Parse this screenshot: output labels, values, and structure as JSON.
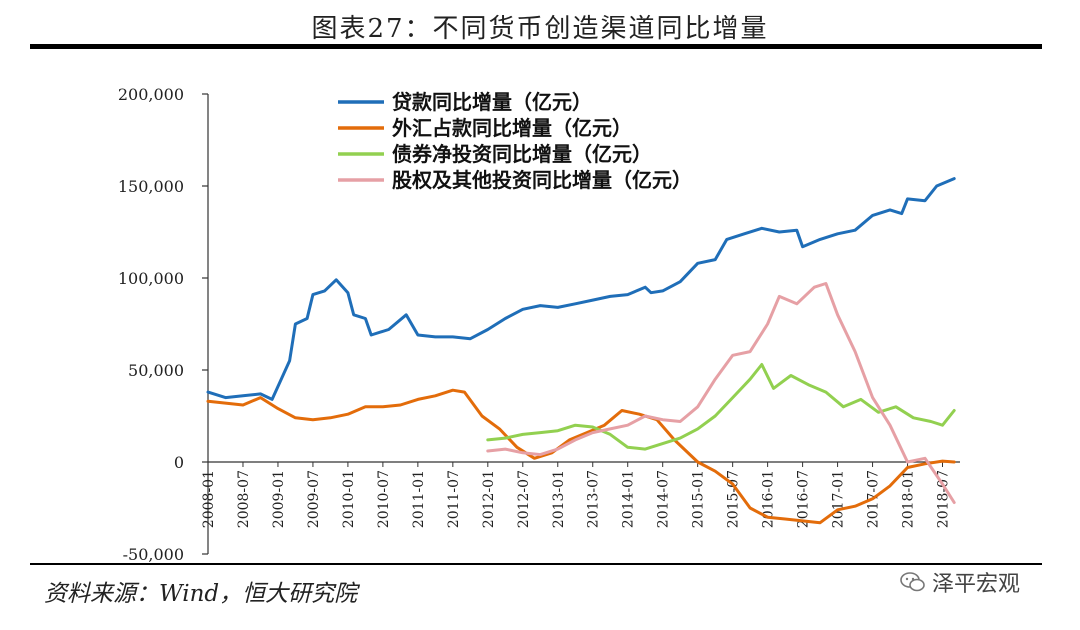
{
  "header": {
    "title": "图表27：不同货币创造渠道同比增量"
  },
  "footer": {
    "source": "资料来源：Wind，恒大研究院",
    "watermark": "泽平宏观"
  },
  "chart_data": {
    "type": "line",
    "title": "图表27：不同货币创造渠道同比增量",
    "xlabel": "",
    "ylabel": "",
    "ylim": [
      -50000,
      200000
    ],
    "yticks": [
      -50000,
      0,
      50000,
      100000,
      150000,
      200000
    ],
    "ytick_labels": [
      "-50,000",
      "0",
      "50,000",
      "100,000",
      "150,000",
      "200,000"
    ],
    "xlim": [
      "2008-01",
      "2018-10"
    ],
    "xtick_labels": [
      "2008-01",
      "2008-07",
      "2009-01",
      "2009-07",
      "2010-01",
      "2010-07",
      "2011-01",
      "2011-07",
      "2012-01",
      "2012-07",
      "2013-01",
      "2013-07",
      "2014-01",
      "2014-07",
      "2015-01",
      "2015-07",
      "2016-01",
      "2016-07",
      "2017-01",
      "2017-07",
      "2018-01",
      "2018-07"
    ],
    "legend_position": "top-left",
    "grid": false,
    "series": [
      {
        "name": "贷款同比增量（亿元）",
        "color": "#1f6eb8",
        "points": [
          [
            "2008-01",
            38000
          ],
          [
            "2008-04",
            35000
          ],
          [
            "2008-07",
            36000
          ],
          [
            "2008-10",
            37000
          ],
          [
            "2008-12",
            34000
          ],
          [
            "2009-03",
            55000
          ],
          [
            "2009-04",
            75000
          ],
          [
            "2009-06",
            78000
          ],
          [
            "2009-07",
            91000
          ],
          [
            "2009-09",
            93000
          ],
          [
            "2009-11",
            99000
          ],
          [
            "2010-01",
            92000
          ],
          [
            "2010-02",
            80000
          ],
          [
            "2010-04",
            78000
          ],
          [
            "2010-05",
            69000
          ],
          [
            "2010-08",
            72000
          ],
          [
            "2010-11",
            80000
          ],
          [
            "2011-01",
            69000
          ],
          [
            "2011-04",
            68000
          ],
          [
            "2011-07",
            68000
          ],
          [
            "2011-10",
            67000
          ],
          [
            "2012-01",
            72000
          ],
          [
            "2012-04",
            78000
          ],
          [
            "2012-07",
            83000
          ],
          [
            "2012-10",
            85000
          ],
          [
            "2013-01",
            84000
          ],
          [
            "2013-04",
            86000
          ],
          [
            "2013-07",
            88000
          ],
          [
            "2013-10",
            90000
          ],
          [
            "2014-01",
            91000
          ],
          [
            "2014-04",
            95000
          ],
          [
            "2014-05",
            92000
          ],
          [
            "2014-07",
            93000
          ],
          [
            "2014-10",
            98000
          ],
          [
            "2015-01",
            108000
          ],
          [
            "2015-04",
            110000
          ],
          [
            "2015-06",
            121000
          ],
          [
            "2015-09",
            124000
          ],
          [
            "2015-12",
            127000
          ],
          [
            "2016-03",
            125000
          ],
          [
            "2016-06",
            126000
          ],
          [
            "2016-07",
            117000
          ],
          [
            "2016-10",
            121000
          ],
          [
            "2017-01",
            124000
          ],
          [
            "2017-04",
            126000
          ],
          [
            "2017-07",
            134000
          ],
          [
            "2017-10",
            137000
          ],
          [
            "2017-12",
            135000
          ],
          [
            "2018-01",
            143000
          ],
          [
            "2018-04",
            142000
          ],
          [
            "2018-06",
            150000
          ],
          [
            "2018-09",
            154000
          ]
        ]
      },
      {
        "name": "外汇占款同比增量（亿元）",
        "color": "#e36c0a",
        "points": [
          [
            "2008-01",
            33000
          ],
          [
            "2008-04",
            32000
          ],
          [
            "2008-07",
            31000
          ],
          [
            "2008-10",
            35000
          ],
          [
            "2009-01",
            29000
          ],
          [
            "2009-04",
            24000
          ],
          [
            "2009-07",
            23000
          ],
          [
            "2009-10",
            24000
          ],
          [
            "2010-01",
            26000
          ],
          [
            "2010-04",
            30000
          ],
          [
            "2010-07",
            30000
          ],
          [
            "2010-10",
            31000
          ],
          [
            "2011-01",
            34000
          ],
          [
            "2011-04",
            36000
          ],
          [
            "2011-07",
            39000
          ],
          [
            "2011-09",
            38000
          ],
          [
            "2011-12",
            25000
          ],
          [
            "2012-03",
            18000
          ],
          [
            "2012-06",
            8000
          ],
          [
            "2012-09",
            2000
          ],
          [
            "2012-12",
            5000
          ],
          [
            "2013-03",
            12000
          ],
          [
            "2013-06",
            16000
          ],
          [
            "2013-09",
            20000
          ],
          [
            "2013-12",
            28000
          ],
          [
            "2014-03",
            26000
          ],
          [
            "2014-06",
            23000
          ],
          [
            "2014-09",
            12000
          ],
          [
            "2015-01",
            0
          ],
          [
            "2015-04",
            -5000
          ],
          [
            "2015-07",
            -12000
          ],
          [
            "2015-10",
            -25000
          ],
          [
            "2016-01",
            -30000
          ],
          [
            "2016-04",
            -31000
          ],
          [
            "2016-07",
            -32000
          ],
          [
            "2016-10",
            -33000
          ],
          [
            "2017-01",
            -26000
          ],
          [
            "2017-04",
            -24000
          ],
          [
            "2017-07",
            -20000
          ],
          [
            "2017-10",
            -13000
          ],
          [
            "2018-01",
            -3000
          ],
          [
            "2018-04",
            -1000
          ],
          [
            "2018-07",
            500
          ],
          [
            "2018-09",
            0
          ]
        ]
      },
      {
        "name": "债券净投资同比增量（亿元）",
        "color": "#92d050",
        "points": [
          [
            "2012-01",
            12000
          ],
          [
            "2012-04",
            13000
          ],
          [
            "2012-07",
            15000
          ],
          [
            "2012-10",
            16000
          ],
          [
            "2013-01",
            17000
          ],
          [
            "2013-04",
            20000
          ],
          [
            "2013-07",
            19000
          ],
          [
            "2013-10",
            15000
          ],
          [
            "2014-01",
            8000
          ],
          [
            "2014-04",
            7000
          ],
          [
            "2014-07",
            10000
          ],
          [
            "2014-10",
            13000
          ],
          [
            "2015-01",
            18000
          ],
          [
            "2015-04",
            25000
          ],
          [
            "2015-07",
            35000
          ],
          [
            "2015-10",
            45000
          ],
          [
            "2015-12",
            53000
          ],
          [
            "2016-02",
            40000
          ],
          [
            "2016-05",
            47000
          ],
          [
            "2016-08",
            42000
          ],
          [
            "2016-11",
            38000
          ],
          [
            "2017-02",
            30000
          ],
          [
            "2017-05",
            34000
          ],
          [
            "2017-08",
            27000
          ],
          [
            "2017-11",
            30000
          ],
          [
            "2018-02",
            24000
          ],
          [
            "2018-05",
            22000
          ],
          [
            "2018-07",
            20000
          ],
          [
            "2018-09",
            28000
          ]
        ]
      },
      {
        "name": "股权及其他投资同比增量（亿元）",
        "color": "#e6a0a5",
        "points": [
          [
            "2012-01",
            6000
          ],
          [
            "2012-04",
            7000
          ],
          [
            "2012-07",
            5000
          ],
          [
            "2012-10",
            4000
          ],
          [
            "2013-01",
            7000
          ],
          [
            "2013-04",
            12000
          ],
          [
            "2013-07",
            16000
          ],
          [
            "2013-10",
            18000
          ],
          [
            "2014-01",
            20000
          ],
          [
            "2014-04",
            25000
          ],
          [
            "2014-07",
            23000
          ],
          [
            "2014-10",
            22000
          ],
          [
            "2015-01",
            30000
          ],
          [
            "2015-04",
            45000
          ],
          [
            "2015-07",
            58000
          ],
          [
            "2015-10",
            60000
          ],
          [
            "2016-01",
            75000
          ],
          [
            "2016-03",
            90000
          ],
          [
            "2016-06",
            86000
          ],
          [
            "2016-09",
            95000
          ],
          [
            "2016-11",
            97000
          ],
          [
            "2017-01",
            80000
          ],
          [
            "2017-04",
            60000
          ],
          [
            "2017-07",
            35000
          ],
          [
            "2017-10",
            20000
          ],
          [
            "2018-01",
            0
          ],
          [
            "2018-04",
            2000
          ],
          [
            "2018-07",
            -12000
          ],
          [
            "2018-09",
            -22000
          ]
        ]
      }
    ]
  }
}
